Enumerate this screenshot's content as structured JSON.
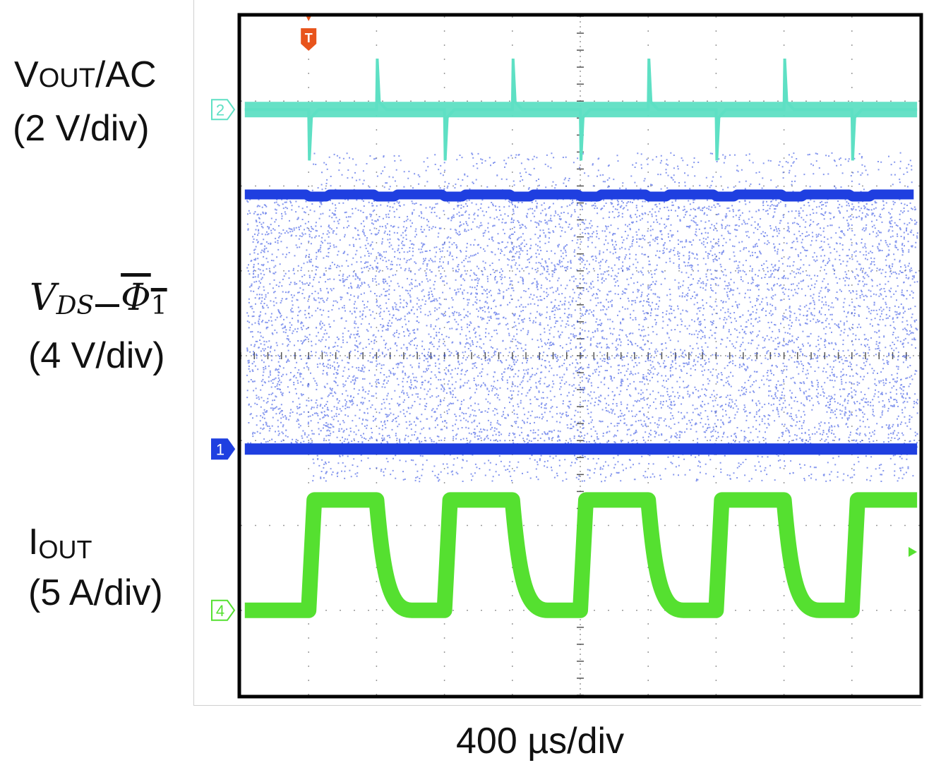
{
  "chart_data": {
    "type": "line",
    "title": "",
    "xlabel": "400 µs/div",
    "x_divisions": 10,
    "y_divisions": 8,
    "trigger_marker": "T",
    "series": [
      {
        "name": "VOUT/AC",
        "channel": "2",
        "scale": "2 V/div",
        "color": "#5ee0c4",
        "waveform": "ac-ripple with spikes at load steps",
        "baseline_div": 6.9,
        "spike_amplitude_div": 0.6,
        "edge_times_div": [
          1.0,
          2.0,
          3.0,
          4.0,
          5.0,
          6.0,
          7.0,
          8.0,
          9.0
        ]
      },
      {
        "name": "VDS_Φ1",
        "channel": "1",
        "scale": "4 V/div",
        "color": "#1f3fe0",
        "waveform": "switching envelope (high/low rails with dense fill)",
        "high_level_div": 5.9,
        "low_level_div": 2.9
      },
      {
        "name": "IOUT",
        "channel": "4",
        "scale": "5 A/div",
        "color": "#55e030",
        "waveform": "square wave (load step)",
        "high_level_div": 2.3,
        "low_level_div": 1.0,
        "edge_times_div": [
          1.0,
          2.0,
          3.0,
          4.0,
          5.0,
          6.0,
          7.0,
          8.0,
          9.0
        ],
        "starts_high": false
      }
    ]
  },
  "labels": {
    "vout_main": "V",
    "vout_sc": "OUT",
    "vout_tail": "/AC",
    "vout_scale": "(2 V/div)",
    "vds_v": "V",
    "vds_sub": "DS",
    "vds_phi": "Φ",
    "vds_one": "1",
    "vds_scale": "(4 V/div)",
    "iout_main": "I",
    "iout_sub": "OUT",
    "iout_scale": "(5 A/div)",
    "xlabel": "400 µs/div"
  },
  "colors": {
    "ch2": "#5ee0c4",
    "ch1": "#1f3fe0",
    "ch4": "#55e030",
    "trigger": "#e8541c",
    "grid": "#9a9a9a",
    "frame": "#000000"
  }
}
